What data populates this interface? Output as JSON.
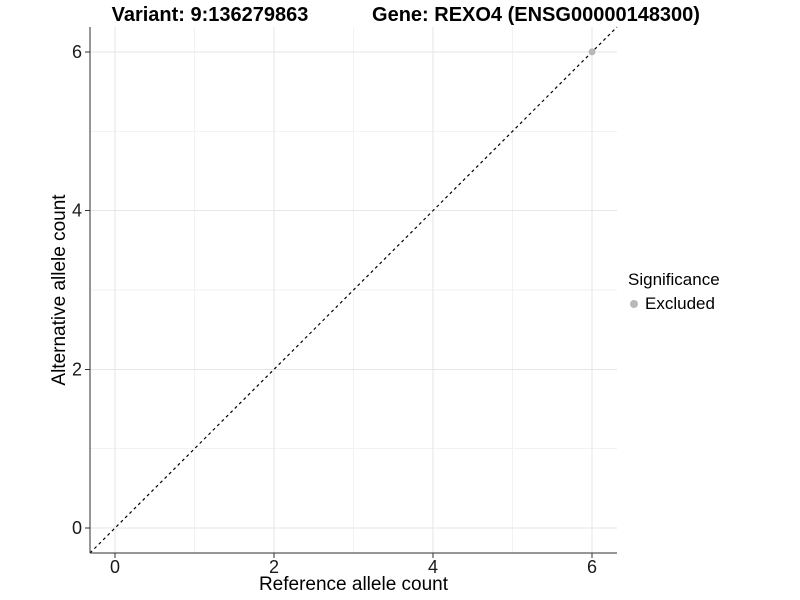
{
  "header": {
    "variant_title": "Variant: 9:136279863",
    "gene_title": "Gene: REXO4 (ENSG00000148300)"
  },
  "legend": {
    "title": "Significance",
    "items": [
      {
        "label": "Excluded",
        "color": "#b8b8b8",
        "marker": "circle"
      }
    ]
  },
  "colors": {
    "background": "#ffffff",
    "axis_line": "#2f2f2f",
    "tick_mark": "#2f2f2f",
    "tick_text": "#1a1a1a",
    "grid_major": "#e6e6e6",
    "grid_minor": "#f2f2f2",
    "reference_line": "#000000",
    "point": "#b8b8b8"
  },
  "chart_data": {
    "type": "scatter",
    "title": "Variant: 9:136279863 / Gene: REXO4 (ENSG00000148300)",
    "xlabel": "Reference allele count",
    "ylabel": "Alternative allele count",
    "xlim": [
      -0.314,
      6.314
    ],
    "ylim": [
      -0.314,
      6.314
    ],
    "x_ticks": [
      0,
      2,
      4,
      6
    ],
    "y_ticks": [
      0,
      2,
      4,
      6
    ],
    "grid_major": [
      0,
      2,
      4,
      6
    ],
    "grid_minor": [
      1,
      3,
      5
    ],
    "grid": true,
    "legend_position": "right",
    "reference_line": {
      "type": "identity",
      "slope": 1,
      "intercept": 0,
      "style": "dashed"
    },
    "series": [
      {
        "name": "Excluded",
        "color": "#b8b8b8",
        "points": [
          [
            6,
            6
          ]
        ]
      }
    ]
  }
}
